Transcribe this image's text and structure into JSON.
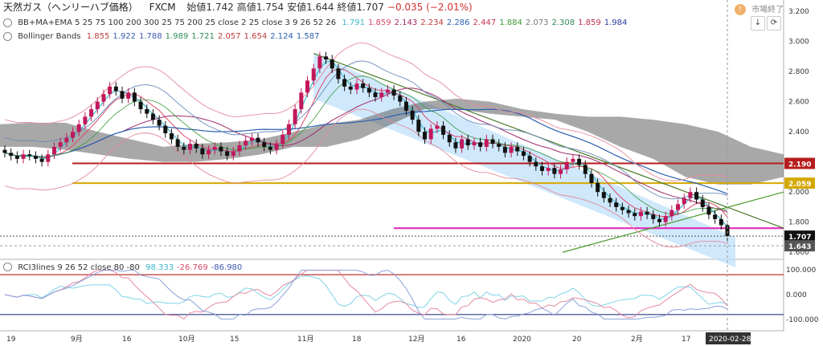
{
  "header": {
    "symbol_title": "天然ガス（ヘンリーハブ価格）",
    "source": "FXCM",
    "ohlc": [
      {
        "label": "始値",
        "value": "1.742"
      },
      {
        "label": "高値",
        "value": "1.754"
      },
      {
        "label": "安値",
        "value": "1.644"
      },
      {
        "label": "終値",
        "value": "1.707"
      },
      {
        "label": "",
        "value": "−0.035 (−2.01%)"
      }
    ],
    "market_status": "市場終了",
    "market_icon_label": "!",
    "toolbar_down": "↓",
    "toolbar_refresh": "⟳"
  },
  "indicators": {
    "ma_label": "BB+MA+EMA 5 25 75 100 200 300 25 75 200 25 close 2 25 close 3 9 26 52 26",
    "ma_values": [
      {
        "v": "1.791",
        "c": "#3cb6c9"
      },
      {
        "v": "1.859",
        "c": "#d94a6a"
      },
      {
        "v": "2.143",
        "c": "#9e2a6b"
      },
      {
        "v": "2.234",
        "c": "#c03a3a"
      },
      {
        "v": "2.286",
        "c": "#2a5fb0"
      },
      {
        "v": "2.447",
        "c": "#c8304a"
      },
      {
        "v": "1.884",
        "c": "#3a9a3a"
      },
      {
        "v": "2.073",
        "c": "#7a7a7a"
      },
      {
        "v": "2.308",
        "c": "#2e8b57"
      },
      {
        "v": "1.859",
        "c": "#c0304a"
      },
      {
        "v": "1.984",
        "c": "#2a3aa0"
      }
    ],
    "bb_label": "Bollinger Bands",
    "bb_values": [
      {
        "v": "1.855",
        "c": "#c03a3a"
      },
      {
        "v": "1.922",
        "c": "#3a5ab0"
      },
      {
        "v": "1.788",
        "c": "#3a5ab0"
      },
      {
        "v": "1.989",
        "c": "#2e8b57"
      },
      {
        "v": "1.721",
        "c": "#2e8b57"
      },
      {
        "v": "2.057",
        "c": "#c03a3a"
      },
      {
        "v": "1.654",
        "c": "#c03a3a"
      },
      {
        "v": "2.124",
        "c": "#2a5fb0"
      },
      {
        "v": "1.587",
        "c": "#2a5fb0"
      }
    ],
    "rci_label": "RCI3lines 9 26 52 close 80 -80",
    "rci_values": [
      {
        "v": "98.333",
        "c": "#3cb6c9"
      },
      {
        "v": "-26.769",
        "c": "#d94a6a"
      },
      {
        "v": "-86.980",
        "c": "#3a5ab0"
      }
    ]
  },
  "chart_data": [
    {
      "type": "candlestick",
      "ylim": [
        1.58,
        3.2
      ],
      "y_ticks": [
        "3.200",
        "3.000",
        "2.800",
        "2.600",
        "2.400",
        "2.200",
        "2.000",
        "1.800",
        "1.600"
      ],
      "x_labels": [
        "19",
        "9月",
        "16",
        "10月",
        "15",
        "11月",
        "18",
        "12月",
        "16",
        "2020",
        "20",
        "2月",
        "17"
      ],
      "date_cursor": "2020-02-28",
      "price_labels": [
        {
          "value": "2.190",
          "bg": "#b71c1c"
        },
        {
          "value": "2.059",
          "bg": "#d4a800"
        },
        {
          "value": "1.707",
          "bg": "#111111"
        },
        {
          "value": "1.643",
          "bg": "#555555"
        }
      ],
      "horizontal_levels": [
        {
          "value": 2.19,
          "color": "#b71c1c"
        },
        {
          "value": 2.059,
          "color": "#d4a800"
        },
        {
          "value": 1.76,
          "color": "#e01fb5"
        }
      ],
      "closes": [
        2.26,
        2.24,
        2.22,
        2.25,
        2.24,
        2.22,
        2.2,
        2.25,
        2.3,
        2.33,
        2.36,
        2.4,
        2.45,
        2.5,
        2.55,
        2.6,
        2.65,
        2.7,
        2.67,
        2.62,
        2.66,
        2.6,
        2.55,
        2.52,
        2.48,
        2.44,
        2.39,
        2.35,
        2.3,
        2.28,
        2.32,
        2.29,
        2.25,
        2.28,
        2.3,
        2.27,
        2.24,
        2.27,
        2.31,
        2.34,
        2.36,
        2.33,
        2.3,
        2.28,
        2.32,
        2.38,
        2.45,
        2.55,
        2.66,
        2.74,
        2.82,
        2.9,
        2.88,
        2.82,
        2.75,
        2.7,
        2.68,
        2.72,
        2.69,
        2.66,
        2.63,
        2.66,
        2.68,
        2.64,
        2.6,
        2.54,
        2.48,
        2.4,
        2.35,
        2.42,
        2.44,
        2.38,
        2.33,
        2.29,
        2.35,
        2.31,
        2.33,
        2.3,
        2.35,
        2.32,
        2.3,
        2.26,
        2.3,
        2.27,
        2.24,
        2.2,
        2.17,
        2.14,
        2.16,
        2.12,
        2.15,
        2.2,
        2.22,
        2.18,
        2.12,
        2.06,
        2.0,
        1.96,
        1.93,
        1.9,
        1.88,
        1.86,
        1.84,
        1.87,
        1.85,
        1.82,
        1.8,
        1.84,
        1.88,
        1.92,
        1.96,
        2.0,
        1.95,
        1.9,
        1.85,
        1.82,
        1.78,
        1.707
      ],
      "rci_ylim": [
        -100,
        100
      ],
      "rci_ticks": [
        "100.000",
        "0.000",
        "-100.000"
      ]
    }
  ]
}
